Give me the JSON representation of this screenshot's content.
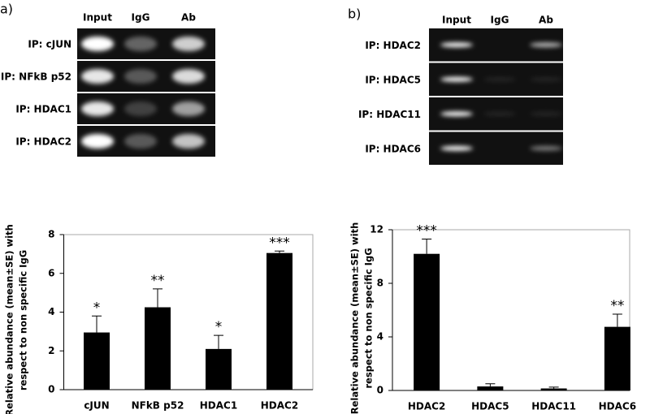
{
  "panels": [
    {
      "label": "a)",
      "lanes": [
        "Input",
        "IgG",
        "Ab"
      ],
      "rows": [
        "IP: cJUN",
        "IP: NFkB p52",
        "IP: HDAC1",
        "IP: HDAC2"
      ]
    },
    {
      "label": "b)",
      "lanes": [
        "Input",
        "IgG",
        "Ab"
      ],
      "rows": [
        "IP: HDAC2",
        "IP: HDAC5",
        "IP: HDAC11",
        "IP: HDAC6"
      ]
    }
  ],
  "chart_data": [
    {
      "type": "bar",
      "ylabel": [
        "Relative abundance (mean±SE) with",
        "respect to non specific IgG"
      ],
      "categories": [
        "cJUN",
        "NFkB p52",
        "HDAC1",
        "HDAC2"
      ],
      "values": [
        2.95,
        4.25,
        2.1,
        7.05
      ],
      "errors": [
        0.85,
        0.95,
        0.7,
        0.1
      ],
      "annotations": [
        "*",
        "**",
        "*",
        "***"
      ],
      "color": "#000000",
      "ylim": [
        0,
        8
      ],
      "yticks": [
        0,
        2,
        4,
        6,
        8
      ]
    },
    {
      "type": "bar",
      "ylabel": [
        "Relative abundance (mean±SE) with",
        "respect to non specific IgG"
      ],
      "categories": [
        "HDAC2",
        "HDAC5",
        "HDAC11",
        "HDAC6"
      ],
      "values": [
        10.2,
        0.3,
        0.15,
        4.75
      ],
      "errors": [
        1.1,
        0.2,
        0.1,
        0.95
      ],
      "annotations": [
        "***",
        null,
        null,
        "**"
      ],
      "color": "#000000",
      "ylim": [
        0,
        12
      ],
      "yticks": [
        0,
        4,
        8,
        12
      ]
    }
  ]
}
